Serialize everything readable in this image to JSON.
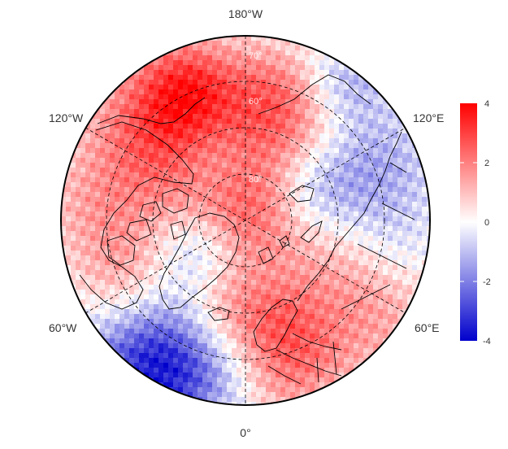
{
  "map": {
    "projection": "north-polar-stereographic",
    "longitude_labels": {
      "top": "180°W",
      "upper_left": "120°W",
      "upper_right": "120°E",
      "lower_left": "60°W",
      "lower_right": "60°E",
      "bottom": "0°"
    },
    "latitude_labels": [
      "70°",
      "60°",
      "80°"
    ],
    "colors": {
      "negative": "#0000cc",
      "zero": "#ffffff",
      "positive": "#ff0000",
      "coastline": "#000000",
      "grid": "#000000"
    }
  },
  "colorbar": {
    "ticks": [
      "4",
      "2",
      "0",
      "-2",
      "-4"
    ],
    "min": -4,
    "max": 4
  }
}
